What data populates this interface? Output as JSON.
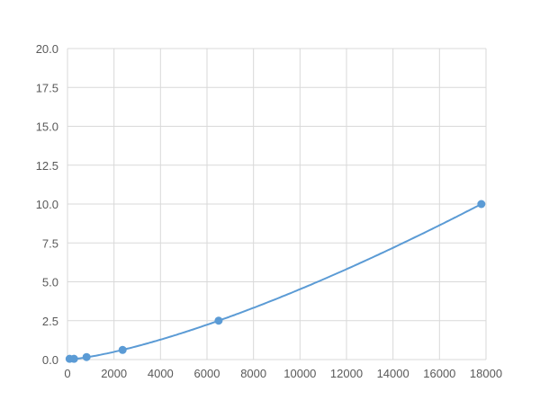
{
  "chart_data": {
    "type": "scatter",
    "title": "",
    "xlabel": "",
    "ylabel": "",
    "xlim": [
      0,
      18000
    ],
    "ylim": [
      0,
      20
    ],
    "x_ticks": [
      "0",
      "2000",
      "4000",
      "6000",
      "8000",
      "10000",
      "12000",
      "14000",
      "16000",
      "18000"
    ],
    "y_ticks": [
      "0.0",
      "2.5",
      "5.0",
      "7.5",
      "10.0",
      "12.5",
      "15.0",
      "17.5",
      "20.0"
    ],
    "grid": true,
    "legend": "none",
    "trendline": "smooth curve through points",
    "color": "#5b9bd5",
    "points": [
      {
        "x": 90,
        "y": 0.05
      },
      {
        "x": 280,
        "y": 0.05
      },
      {
        "x": 820,
        "y": 0.16
      },
      {
        "x": 2370,
        "y": 0.62
      },
      {
        "x": 6500,
        "y": 2.5
      },
      {
        "x": 17800,
        "y": 10.0
      }
    ]
  }
}
